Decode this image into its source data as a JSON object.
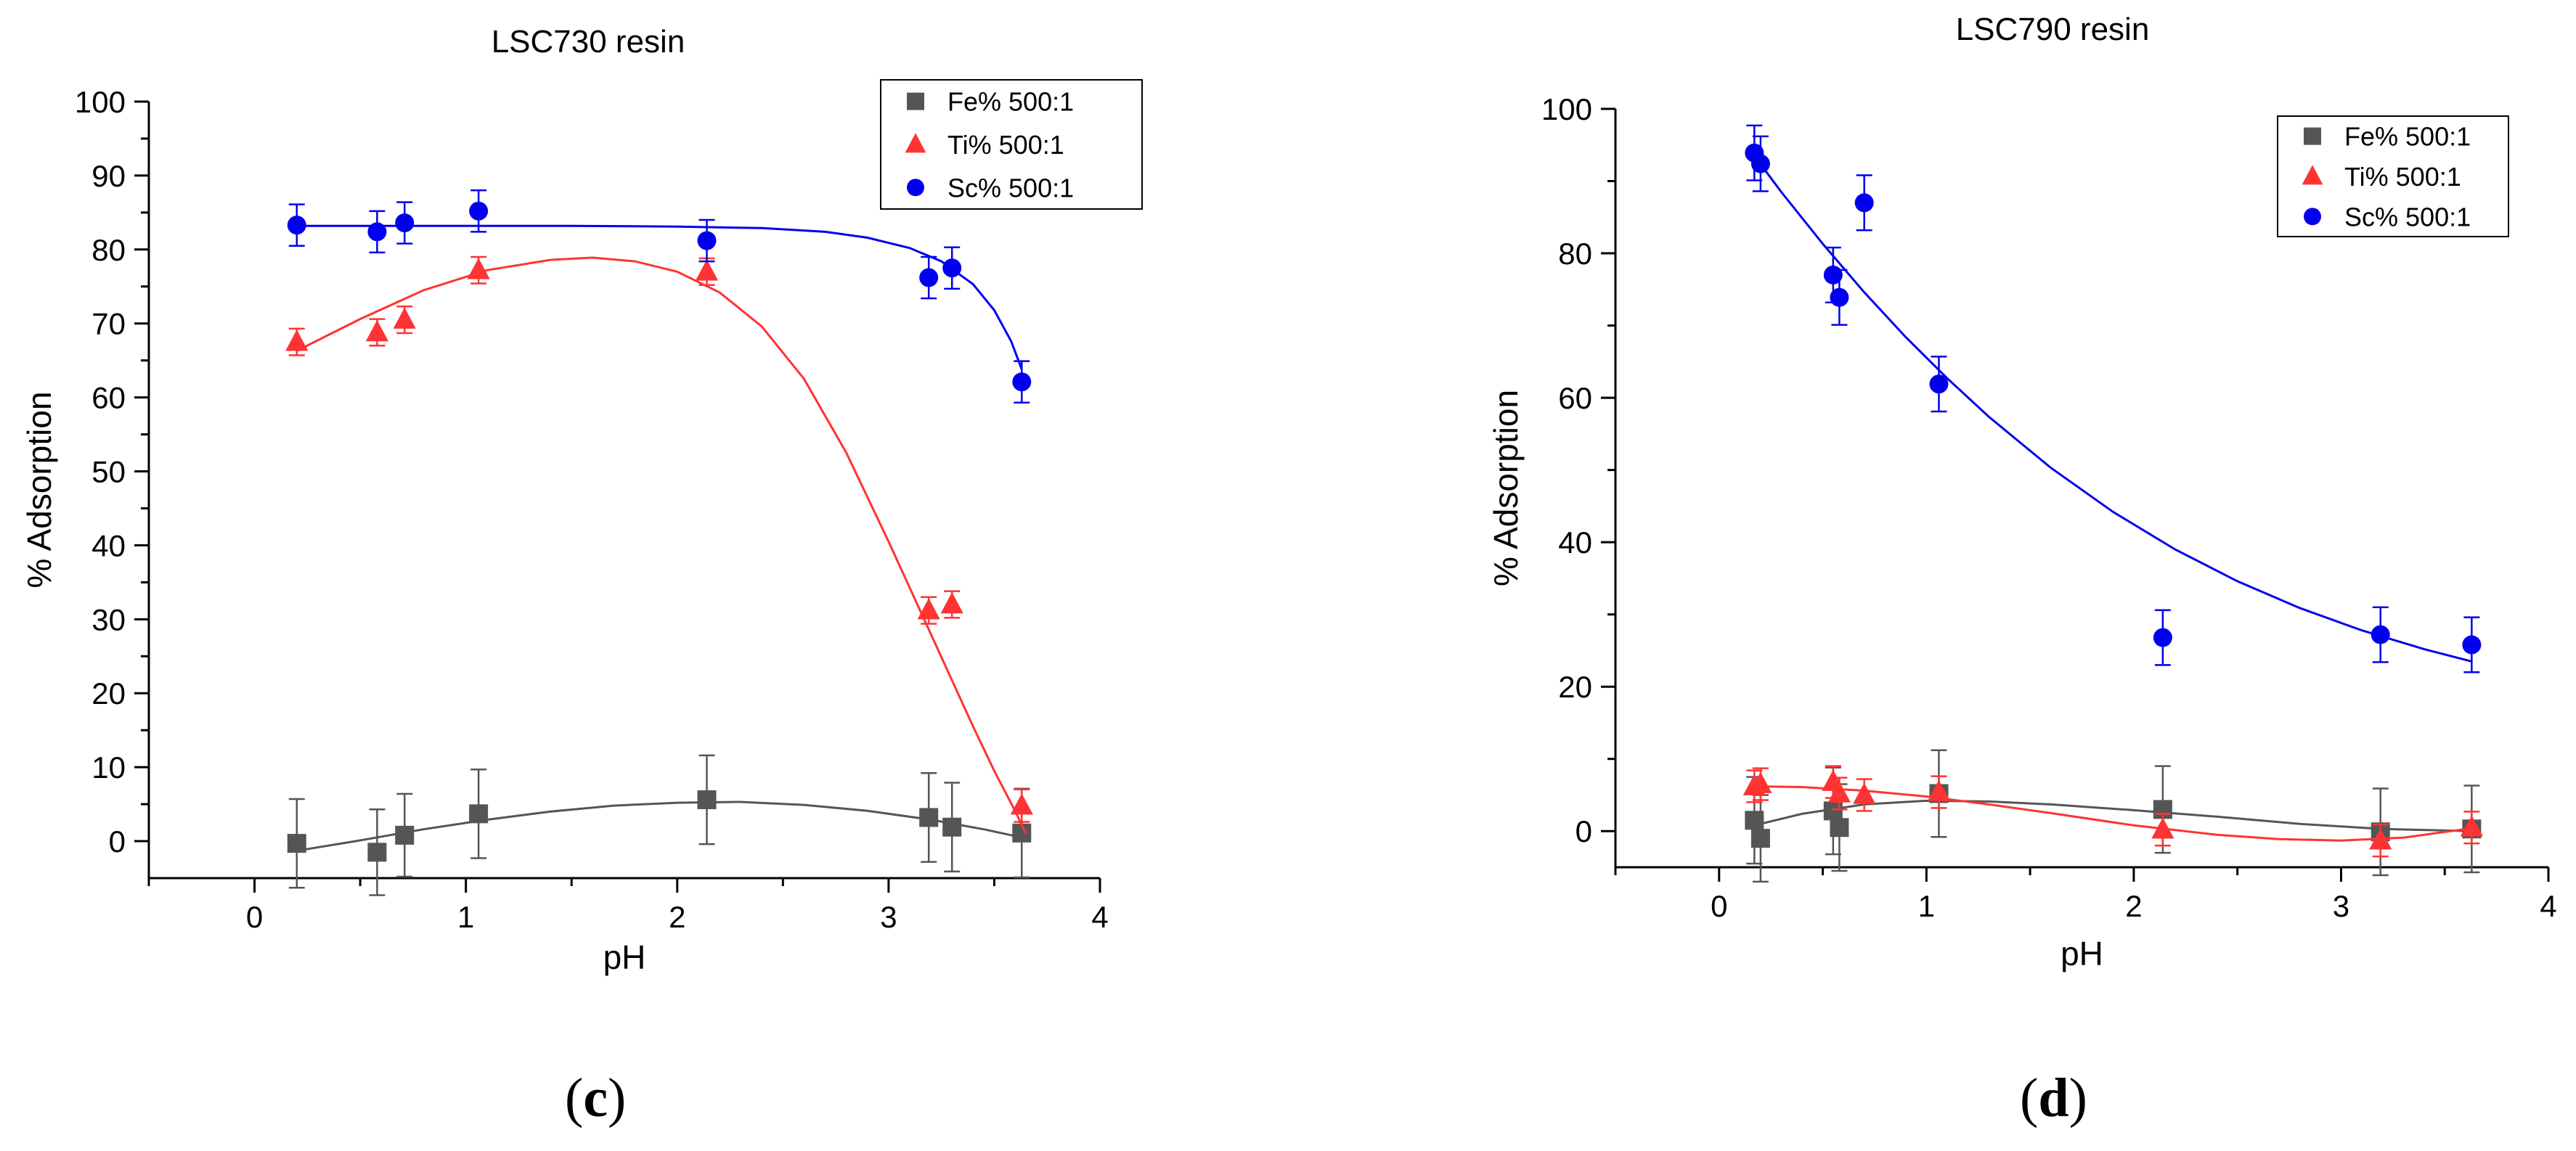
{
  "chart_data": [
    {
      "type": "scatter",
      "title": "LSC730 resin",
      "xlabel": "pH",
      "ylabel": "% Adsorption",
      "xlim": [
        -0.5,
        4
      ],
      "ylim": [
        -5,
        100
      ],
      "xticks": [
        0,
        1,
        2,
        3,
        4
      ],
      "yticks": [
        0,
        10,
        20,
        30,
        40,
        50,
        60,
        70,
        80,
        90,
        100
      ],
      "xtick_labels": [
        "0",
        "1",
        "2",
        "3",
        "4"
      ],
      "ytick_labels": [
        "0",
        "10",
        "20",
        "30",
        "40",
        "50",
        "60",
        "70",
        "80",
        "90",
        "100"
      ],
      "grid": false,
      "legend_position": "top-right",
      "panel_label": "c",
      "series": [
        {
          "name": "Fe% 500:1",
          "color": "#555555",
          "marker": "square",
          "x": [
            0.2,
            0.58,
            0.71,
            1.06,
            2.14,
            3.19,
            3.3,
            3.63
          ],
          "y": [
            -0.3,
            -1.5,
            0.8,
            3.7,
            5.6,
            3.2,
            1.9,
            1.1
          ],
          "err": [
            6,
            5.8,
            5.6,
            6,
            6,
            6,
            6,
            6
          ],
          "fit": {
            "x": [
              0.2,
              0.5,
              0.8,
              1.1,
              1.4,
              1.7,
              2.0,
              2.3,
              2.6,
              2.9,
              3.2,
              3.45,
              3.63
            ],
            "y": [
              -1.3,
              0.1,
              1.6,
              2.9,
              4.0,
              4.8,
              5.2,
              5.3,
              4.9,
              4.1,
              2.9,
              1.6,
              0.5
            ]
          }
        },
        {
          "name": "Ti% 500:1",
          "color": "#ff3333",
          "marker": "triangle",
          "x": [
            0.2,
            0.58,
            0.71,
            1.06,
            2.14,
            3.19,
            3.3,
            3.63
          ],
          "y": [
            67.5,
            68.8,
            70.5,
            77.2,
            77.0,
            31.2,
            32.0,
            4.8
          ],
          "err": [
            1.8,
            1.8,
            1.8,
            1.8,
            1.8,
            1.8,
            1.8,
            2.2
          ],
          "fit": {
            "x": [
              0.2,
              0.5,
              0.8,
              1.1,
              1.4,
              1.6,
              1.8,
              2.0,
              2.2,
              2.4,
              2.6,
              2.8,
              3.0,
              3.2,
              3.4,
              3.5,
              3.6,
              3.65
            ],
            "y": [
              66.3,
              70.6,
              74.5,
              77.2,
              78.6,
              78.9,
              78.4,
              77.0,
              74.2,
              69.6,
              62.5,
              52.5,
              40.5,
              28.0,
              15.5,
              9.5,
              4.0,
              1.0
            ]
          }
        },
        {
          "name": "Sc% 500:1",
          "color": "#0000ee",
          "marker": "circle",
          "x": [
            0.2,
            0.58,
            0.71,
            1.06,
            2.14,
            3.19,
            3.3,
            3.63
          ],
          "y": [
            83.3,
            82.4,
            83.6,
            85.2,
            81.2,
            76.2,
            77.5,
            62.1
          ],
          "err": [
            2.8,
            2.8,
            2.8,
            2.8,
            2.8,
            2.8,
            2.8,
            2.8
          ],
          "fit": {
            "x": [
              0.2,
              0.6,
              1.0,
              1.5,
              2.0,
              2.4,
              2.7,
              2.9,
              3.1,
              3.25,
              3.4,
              3.5,
              3.58,
              3.63
            ],
            "y": [
              83.2,
              83.2,
              83.2,
              83.2,
              83.1,
              82.9,
              82.4,
              81.6,
              80.2,
              78.4,
              75.3,
              71.8,
              67.6,
              63.8
            ]
          }
        }
      ]
    },
    {
      "type": "scatter",
      "title": "LSC790 resin",
      "xlabel": "pH",
      "ylabel": "% Adsorption",
      "xlim": [
        -0.5,
        4
      ],
      "ylim": [
        -5,
        100
      ],
      "xticks": [
        0,
        1,
        2,
        3,
        4
      ],
      "yticks": [
        0,
        20,
        40,
        60,
        80,
        100
      ],
      "xtick_labels": [
        "0",
        "1",
        "2",
        "3",
        "4"
      ],
      "ytick_labels": [
        "0",
        "20",
        "40",
        "60",
        "80",
        "100"
      ],
      "grid": false,
      "legend_position": "top-right",
      "panel_label": "d",
      "series": [
        {
          "name": "Fe% 500:1",
          "color": "#555555",
          "marker": "square",
          "x": [
            0.17,
            0.2,
            0.55,
            0.58,
            1.06,
            2.14,
            3.19,
            3.63
          ],
          "y": [
            1.5,
            -1.0,
            2.8,
            0.5,
            5.2,
            3.0,
            -0.1,
            0.3
          ],
          "err": [
            6,
            6,
            6,
            6,
            6,
            6,
            6,
            6
          ],
          "fit": {
            "x": [
              0.17,
              0.4,
              0.7,
              1.0,
              1.3,
              1.6,
              2.0,
              2.4,
              2.8,
              3.2,
              3.63
            ],
            "y": [
              0.8,
              2.4,
              3.7,
              4.2,
              4.1,
              3.7,
              2.9,
              2.0,
              1.0,
              0.3,
              0.0
            ]
          }
        },
        {
          "name": "Ti% 500:1",
          "color": "#ff3333",
          "marker": "triangle",
          "x": [
            0.17,
            0.2,
            0.55,
            0.58,
            0.7,
            1.06,
            2.14,
            3.19,
            3.63
          ],
          "y": [
            6.2,
            6.5,
            6.8,
            5.2,
            5.0,
            5.4,
            0.2,
            -1.3,
            0.5
          ],
          "err": [
            2.2,
            2.2,
            2.2,
            2.2,
            2.2,
            2.2,
            2.2,
            2.2,
            2.2
          ],
          "fit": {
            "x": [
              0.17,
              0.4,
              0.7,
              1.0,
              1.3,
              1.6,
              2.0,
              2.4,
              2.7,
              3.0,
              3.3,
              3.63
            ],
            "y": [
              6.2,
              6.1,
              5.6,
              4.8,
              3.7,
              2.5,
              0.8,
              -0.5,
              -1.1,
              -1.3,
              -0.9,
              0.4
            ]
          }
        },
        {
          "name": "Sc% 500:1",
          "color": "#0000ee",
          "marker": "circle",
          "x": [
            0.17,
            0.2,
            0.55,
            0.58,
            0.7,
            1.06,
            2.14,
            3.19,
            3.63
          ],
          "y": [
            93.9,
            92.4,
            77.0,
            73.9,
            87.0,
            61.9,
            26.8,
            27.2,
            25.8
          ],
          "err": [
            3.8,
            3.8,
            3.8,
            3.8,
            3.8,
            3.8,
            3.8,
            3.8,
            3.8
          ],
          "fit": {
            "x": [
              0.17,
              0.3,
              0.5,
              0.7,
              0.9,
              1.1,
              1.3,
              1.6,
              1.9,
              2.2,
              2.5,
              2.8,
              3.1,
              3.4,
              3.63
            ],
            "y": [
              93.5,
              88.5,
              81.3,
              74.6,
              68.4,
              62.7,
              57.4,
              50.3,
              44.2,
              39.0,
              34.6,
              30.9,
              27.8,
              25.2,
              23.5
            ]
          }
        }
      ]
    }
  ]
}
